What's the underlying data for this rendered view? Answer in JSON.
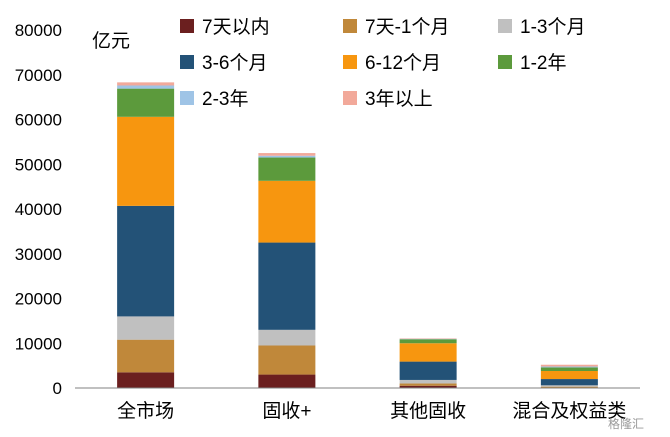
{
  "chart_data": {
    "type": "bar",
    "stacked": true,
    "unit_label": "亿元",
    "categories": [
      "全市场",
      "固收+",
      "其他固收",
      "混合及权益类"
    ],
    "ylim": [
      0,
      80000
    ],
    "yticks": [
      "0",
      "10000",
      "20000",
      "30000",
      "40000",
      "50000",
      "60000",
      "70000",
      "80000"
    ],
    "legend_position": "top",
    "grid": false,
    "series": [
      {
        "name": "7天以内",
        "color": "#6b1f1f",
        "values": [
          3500,
          3000,
          500,
          100
        ]
      },
      {
        "name": "7天-1个月",
        "color": "#c0883a",
        "values": [
          7300,
          6500,
          500,
          200
        ]
      },
      {
        "name": "1-3个月",
        "color": "#c0c0c0",
        "values": [
          5200,
          3500,
          800,
          300
        ]
      },
      {
        "name": "3-6个月",
        "color": "#235277",
        "values": [
          24700,
          19500,
          4100,
          1400
        ]
      },
      {
        "name": "6-12个月",
        "color": "#f7960f",
        "values": [
          19900,
          13800,
          4100,
          1800
        ]
      },
      {
        "name": "1-2年",
        "color": "#5c9a3c",
        "values": [
          6300,
          5200,
          900,
          800
        ]
      },
      {
        "name": "2-3年",
        "color": "#9fc4e6",
        "values": [
          700,
          400,
          100,
          200
        ]
      },
      {
        "name": "3年以上",
        "color": "#f2a99a",
        "values": [
          700,
          600,
          100,
          400
        ]
      }
    ]
  },
  "watermark": "格隆汇"
}
